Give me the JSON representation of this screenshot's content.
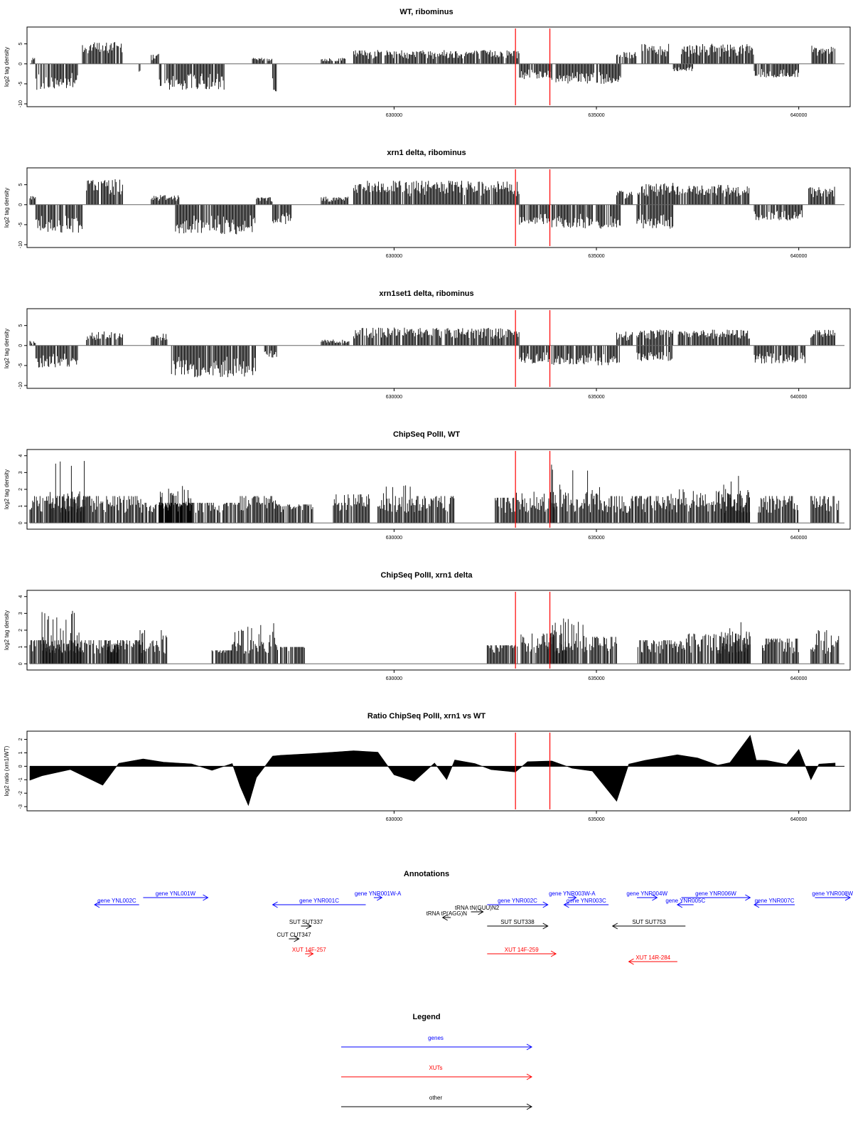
{
  "chart_data": [
    {
      "type": "bar",
      "title": "WT, ribominus",
      "ylabel": "log2 tag density",
      "xlim": [
        621000,
        641200
      ],
      "ylim": [
        -10,
        8.5
      ],
      "yticks": [
        -10,
        -5,
        0,
        5
      ],
      "xticks": [
        630000,
        635000,
        640000
      ],
      "markers": [
        633000,
        633850
      ],
      "segments": [
        {
          "x": [
            621050,
            621150
          ],
          "value": 1.5
        },
        {
          "x": [
            621150,
            622200
          ],
          "value": -6.5
        },
        {
          "x": [
            622300,
            623300
          ],
          "value": 5.5
        },
        {
          "x": [
            623700,
            623750
          ],
          "value": -3
        },
        {
          "x": [
            624000,
            624200
          ],
          "value": 2.5
        },
        {
          "x": [
            624200,
            625800
          ],
          "value": -6.5
        },
        {
          "x": [
            626500,
            627000
          ],
          "value": 1.5
        },
        {
          "x": [
            627000,
            627100
          ],
          "value": -7
        },
        {
          "x": [
            628200,
            628800
          ],
          "value": 1.5
        },
        {
          "x": [
            629000,
            633100
          ],
          "value": 3.5
        },
        {
          "x": [
            633100,
            633900
          ],
          "value": -4
        },
        {
          "x": [
            634000,
            635600
          ],
          "value": -5
        },
        {
          "x": [
            635500,
            636000
          ],
          "value": 3
        },
        {
          "x": [
            636100,
            636800
          ],
          "value": 5
        },
        {
          "x": [
            636900,
            637400
          ],
          "value": -2
        },
        {
          "x": [
            637100,
            638900
          ],
          "value": 5
        },
        {
          "x": [
            638900,
            640000
          ],
          "value": -3.5
        },
        {
          "x": [
            640300,
            640900
          ],
          "value": 5
        }
      ]
    },
    {
      "type": "bar",
      "title": "xrn1 delta, ribominus",
      "ylabel": "log2 tag density",
      "xlim": [
        621000,
        641200
      ],
      "ylim": [
        -10,
        8.5
      ],
      "yticks": [
        -10,
        -5,
        0,
        5
      ],
      "xticks": [
        630000,
        635000,
        640000
      ],
      "markers": [
        633000,
        633850
      ],
      "segments": [
        {
          "x": [
            621000,
            621150
          ],
          "value": 2.5
        },
        {
          "x": [
            621150,
            622300
          ],
          "value": -7
        },
        {
          "x": [
            622400,
            623300
          ],
          "value": 6.5
        },
        {
          "x": [
            624000,
            624700
          ],
          "value": 2.5
        },
        {
          "x": [
            624600,
            626600
          ],
          "value": -7.5
        },
        {
          "x": [
            626600,
            627000
          ],
          "value": 2
        },
        {
          "x": [
            627000,
            627500
          ],
          "value": -5
        },
        {
          "x": [
            628200,
            628900
          ],
          "value": 2
        },
        {
          "x": [
            629000,
            633100
          ],
          "value": 6
        },
        {
          "x": [
            633100,
            633850
          ],
          "value": -5
        },
        {
          "x": [
            633900,
            635600
          ],
          "value": -6
        },
        {
          "x": [
            635500,
            635900
          ],
          "value": 3.5
        },
        {
          "x": [
            636000,
            636900
          ],
          "value": 5.5
        },
        {
          "x": [
            636000,
            636900
          ],
          "value": -6
        },
        {
          "x": [
            636900,
            638800
          ],
          "value": 5
        },
        {
          "x": [
            638900,
            640100
          ],
          "value": -4
        },
        {
          "x": [
            640200,
            640900
          ],
          "value": 4.5
        }
      ]
    },
    {
      "type": "bar",
      "title": "xrn1set1 delta, ribominus",
      "ylabel": "log2 tag density",
      "xlim": [
        621000,
        641200
      ],
      "ylim": [
        -10,
        8.5
      ],
      "yticks": [
        -10,
        -5,
        0,
        5
      ],
      "xticks": [
        630000,
        635000,
        640000
      ],
      "markers": [
        633000,
        633850
      ],
      "segments": [
        {
          "x": [
            621000,
            621150
          ],
          "value": 1.2
        },
        {
          "x": [
            621150,
            622200
          ],
          "value": -5.5
        },
        {
          "x": [
            622400,
            623300
          ],
          "value": 3.5
        },
        {
          "x": [
            624000,
            624400
          ],
          "value": 3
        },
        {
          "x": [
            624500,
            626600
          ],
          "value": -8
        },
        {
          "x": [
            626800,
            627100
          ],
          "value": -3
        },
        {
          "x": [
            628200,
            628900
          ],
          "value": 1.5
        },
        {
          "x": [
            629000,
            633100
          ],
          "value": 4.5
        },
        {
          "x": [
            633100,
            633850
          ],
          "value": -4.5
        },
        {
          "x": [
            633900,
            635600
          ],
          "value": -5
        },
        {
          "x": [
            635500,
            635900
          ],
          "value": 3.5
        },
        {
          "x": [
            636000,
            636900
          ],
          "value": 4
        },
        {
          "x": [
            636000,
            636900
          ],
          "value": -4
        },
        {
          "x": [
            637000,
            638800
          ],
          "value": 4
        },
        {
          "x": [
            638900,
            640200
          ],
          "value": -4.5
        },
        {
          "x": [
            640300,
            640900
          ],
          "value": 4
        }
      ]
    },
    {
      "type": "bar",
      "title": "ChipSeq PolII, WT",
      "ylabel": "log2 tag density",
      "xlim": [
        621000,
        641200
      ],
      "ylim": [
        -0.2,
        4.2
      ],
      "yticks": [
        0,
        1,
        2,
        3,
        4
      ],
      "xticks": [
        630000,
        635000,
        640000
      ],
      "markers": [
        633000,
        633850
      ],
      "segments": [
        {
          "x": [
            621000,
            623800
          ],
          "value": 1.6
        },
        {
          "x": [
            621500,
            622400
          ],
          "value": 3.8
        },
        {
          "x": [
            623800,
            626200
          ],
          "value": 1.2
        },
        {
          "x": [
            624200,
            625000
          ],
          "value": 2.2
        },
        {
          "x": [
            626200,
            627100
          ],
          "value": 1.6
        },
        {
          "x": [
            627100,
            628000
          ],
          "value": 1.1
        },
        {
          "x": [
            628500,
            629400
          ],
          "value": 1.7
        },
        {
          "x": [
            629600,
            630500
          ],
          "value": 2.4
        },
        {
          "x": [
            630500,
            631500
          ],
          "value": 1.6
        },
        {
          "x": [
            632500,
            633000
          ],
          "value": 1.5
        },
        {
          "x": [
            633000,
            634000
          ],
          "value": 2
        },
        {
          "x": [
            633800,
            635200
          ],
          "value": 3.6
        },
        {
          "x": [
            635200,
            636800
          ],
          "value": 1.6
        },
        {
          "x": [
            636800,
            638800
          ],
          "value": 2
        },
        {
          "x": [
            638100,
            638800
          ],
          "value": 2.9
        },
        {
          "x": [
            639000,
            640000
          ],
          "value": 1.6
        },
        {
          "x": [
            640300,
            641000
          ],
          "value": 1.6
        }
      ]
    },
    {
      "type": "bar",
      "title": "ChipSeq PolII, xrn1 delta",
      "ylabel": "log2 tag density",
      "xlim": [
        621000,
        641200
      ],
      "ylim": [
        -0.2,
        4.2
      ],
      "yticks": [
        0,
        1,
        2,
        3,
        4
      ],
      "xticks": [
        630000,
        635000,
        640000
      ],
      "markers": [
        633000,
        633850
      ],
      "segments": [
        {
          "x": [
            621000,
            623800
          ],
          "value": 1.4
        },
        {
          "x": [
            621300,
            622300
          ],
          "value": 3.2
        },
        {
          "x": [
            622900,
            623200
          ],
          "value": 1.2
        },
        {
          "x": [
            623700,
            624400
          ],
          "value": 2
        },
        {
          "x": [
            625500,
            626000
          ],
          "value": 0.8
        },
        {
          "x": [
            626000,
            626500
          ],
          "value": 2.2
        },
        {
          "x": [
            626500,
            627100
          ],
          "value": 2.6
        },
        {
          "x": [
            627100,
            627800
          ],
          "value": 1
        },
        {
          "x": [
            632300,
            633000
          ],
          "value": 1.1
        },
        {
          "x": [
            633000,
            634300
          ],
          "value": 1.8
        },
        {
          "x": [
            633800,
            634700
          ],
          "value": 2.7
        },
        {
          "x": [
            634700,
            635500
          ],
          "value": 1.6
        },
        {
          "x": [
            636000,
            637200
          ],
          "value": 1.4
        },
        {
          "x": [
            637200,
            638800
          ],
          "value": 1.8
        },
        {
          "x": [
            638000,
            638800
          ],
          "value": 2.6
        },
        {
          "x": [
            639100,
            640000
          ],
          "value": 1.5
        },
        {
          "x": [
            640300,
            641000
          ],
          "value": 2
        }
      ]
    },
    {
      "type": "area",
      "title": "Ratio ChipSeq PolII, xrn1 vs WT",
      "ylabel": "log2 ratio (xrn1/WT)",
      "xlim": [
        621000,
        641200
      ],
      "ylim": [
        -3.1,
        2.4
      ],
      "yticks": [
        -3,
        -2,
        -1,
        0,
        1,
        2
      ],
      "xticks": [
        630000,
        635000,
        640000
      ],
      "markers": [
        633000,
        633850
      ],
      "x": [
        621000,
        621300,
        622000,
        622800,
        623200,
        623800,
        624300,
        625000,
        625500,
        626000,
        626200,
        626400,
        626600,
        627000,
        627200,
        628000,
        628500,
        629000,
        629600,
        630000,
        630500,
        631000,
        631300,
        631500,
        632000,
        632400,
        633000,
        633300,
        633900,
        634400,
        634900,
        635500,
        635800,
        636200,
        637000,
        637500,
        638000,
        638300,
        638800,
        638950,
        639200,
        639700,
        640000,
        640300,
        640500,
        640900
      ],
      "values": [
        -1,
        -0.7,
        -0.2,
        -1.4,
        0.2,
        0.5,
        0.3,
        0.2,
        -0.3,
        0.2,
        -1.5,
        -2.9,
        -0.8,
        0.7,
        0.8,
        1,
        1.1,
        1.2,
        1,
        -0.6,
        -1.1,
        0.3,
        -1,
        0.5,
        0.2,
        -0.2,
        -0.4,
        0.4,
        0.4,
        -0.2,
        -0.4,
        -2.6,
        0.2,
        0.4,
        0.8,
        0.6,
        0.1,
        0.3,
        2.3,
        0.4,
        0.5,
        0.1,
        1.2,
        -1,
        0.2,
        0.2
      ]
    }
  ],
  "annotations": {
    "title": "Annotations",
    "colors": {
      "gene": "#0000ff",
      "xut": "#ff0000",
      "other": "#000000"
    },
    "items": [
      {
        "label": "gene YNL002C",
        "type": "gene",
        "row": 2,
        "start": 622600,
        "end": 623700,
        "dir": "left"
      },
      {
        "label": "gene YNL001W",
        "type": "gene",
        "row": 1,
        "start": 623800,
        "end": 625400,
        "dir": "right"
      },
      {
        "label": "gene YNR001C",
        "type": "gene",
        "row": 2,
        "start": 627000,
        "end": 629300,
        "dir": "left"
      },
      {
        "label": "gene YNR001W-A",
        "type": "gene",
        "row": 1,
        "start": 629500,
        "end": 629700,
        "dir": "right"
      },
      {
        "label": "tRNA tN(GUU)N2",
        "type": "other",
        "row": 3,
        "start": 631900,
        "end": 632200,
        "dir": "right"
      },
      {
        "label": "tRNA tP(AGG)N",
        "type": "other",
        "row": 4,
        "start": 631200,
        "end": 631400,
        "dir": "left"
      },
      {
        "label": "gene YNR002C",
        "type": "gene",
        "row": 2,
        "start": 632300,
        "end": 633800,
        "dir": "right"
      },
      {
        "label": "gene YNR003W-A",
        "type": "gene",
        "row": 1,
        "start": 634300,
        "end": 634500,
        "dir": "right"
      },
      {
        "label": "gene YNR003C",
        "type": "gene",
        "row": 2,
        "start": 634200,
        "end": 635300,
        "dir": "left"
      },
      {
        "label": "gene YNR004W",
        "type": "gene",
        "row": 1,
        "start": 636000,
        "end": 636500,
        "dir": "right"
      },
      {
        "label": "gene YNR005C",
        "type": "gene",
        "row": 2,
        "start": 637000,
        "end": 637400,
        "dir": "left"
      },
      {
        "label": "gene YNR006W",
        "type": "gene",
        "row": 1,
        "start": 637100,
        "end": 638800,
        "dir": "right"
      },
      {
        "label": "gene YNR007C",
        "type": "gene",
        "row": 2,
        "start": 638900,
        "end": 639900,
        "dir": "left"
      },
      {
        "label": "gene YNR008W",
        "type": "gene",
        "row": 1,
        "start": 640400,
        "end": 642000,
        "dir": "right"
      },
      {
        "label": "SUT SUT337",
        "type": "other",
        "row": 5,
        "start": 627700,
        "end": 627950,
        "dir": "right"
      },
      {
        "label": "CUT CUT347",
        "type": "other",
        "row": 6,
        "start": 627400,
        "end": 627650,
        "dir": "right"
      },
      {
        "label": "XUT 14F-257",
        "type": "xut",
        "row": 7,
        "start": 627800,
        "end": 628000,
        "dir": "right"
      },
      {
        "label": "SUT SUT338",
        "type": "other",
        "row": 5,
        "start": 632300,
        "end": 633800,
        "dir": "right"
      },
      {
        "label": "XUT 14F-259",
        "type": "xut",
        "row": 7,
        "start": 632300,
        "end": 634000,
        "dir": "right"
      },
      {
        "label": "SUT SUT753",
        "type": "other",
        "row": 5,
        "start": 635400,
        "end": 637200,
        "dir": "left"
      },
      {
        "label": "XUT 14R-284",
        "type": "xut",
        "row": 8,
        "start": 635800,
        "end": 637000,
        "dir": "left"
      }
    ]
  },
  "legend": {
    "title": "Legend",
    "items": [
      {
        "label": "genes",
        "color": "#0000ff"
      },
      {
        "label": "XUTs",
        "color": "#ff0000"
      },
      {
        "label": "other",
        "color": "#000000"
      }
    ]
  }
}
